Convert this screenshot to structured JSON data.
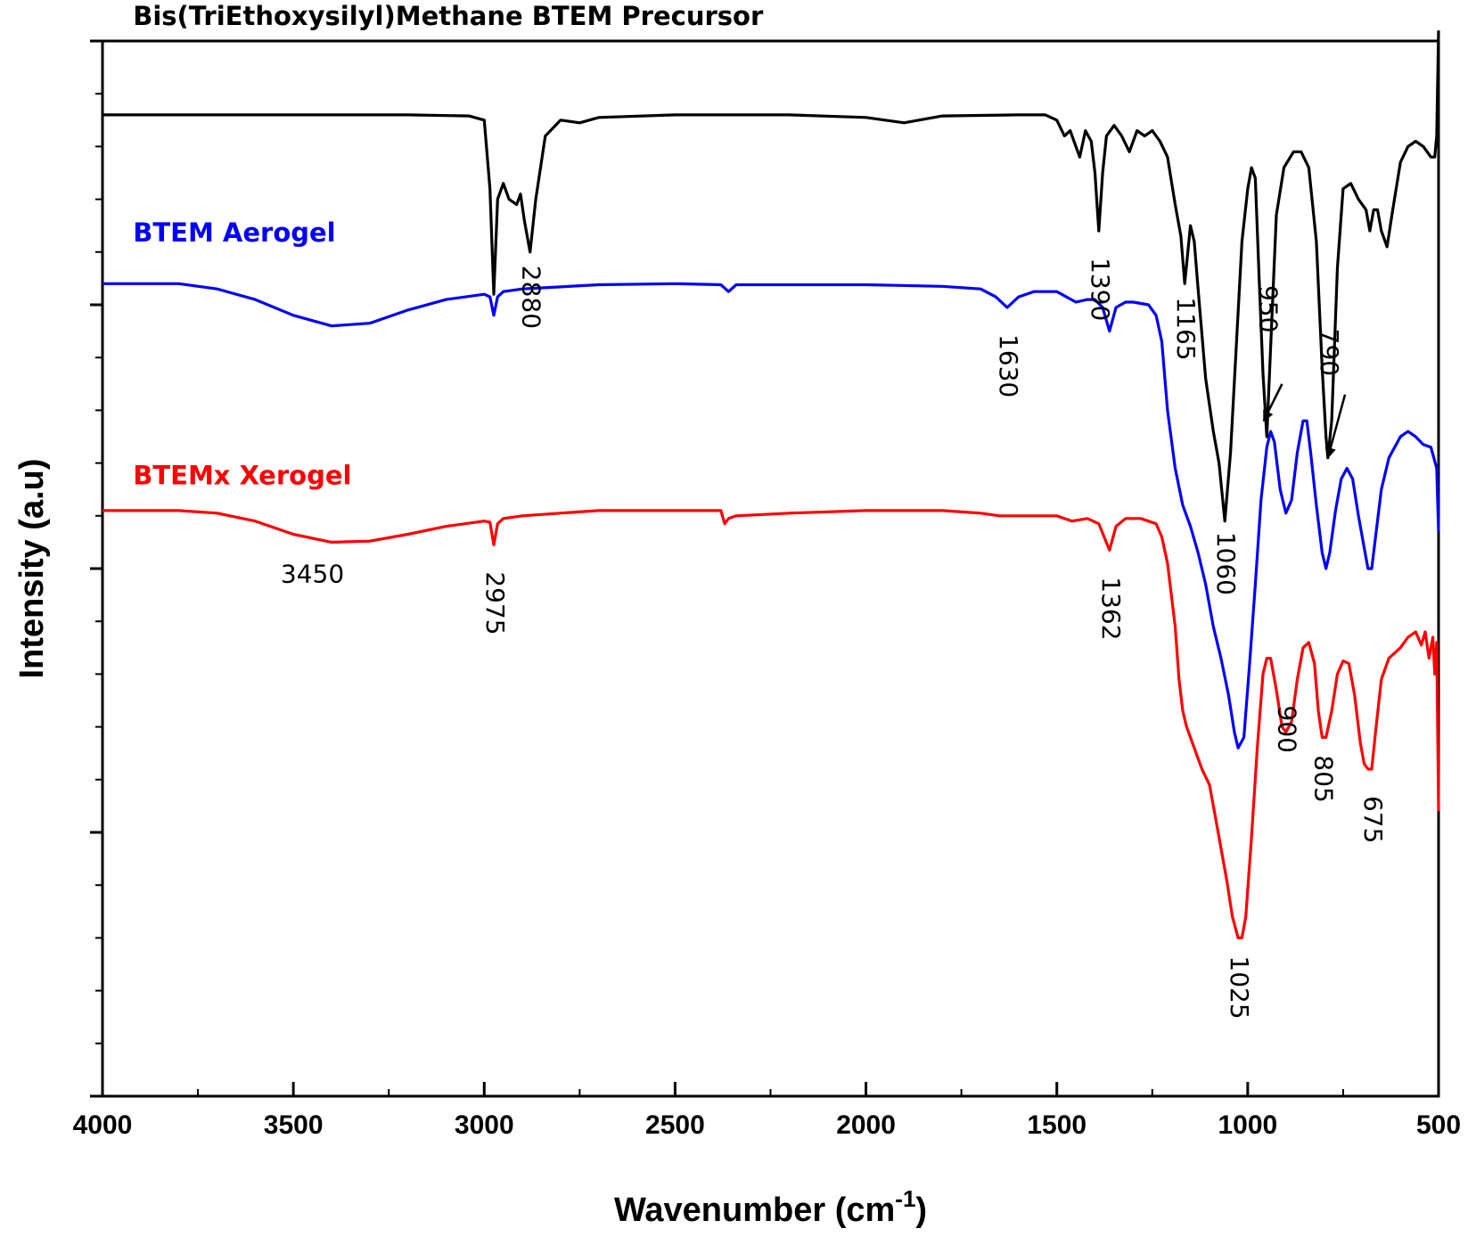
{
  "chart_data": {
    "type": "line",
    "title": "",
    "xlabel": "Wavenumber (cm",
    "xlabel_superscript": "-1",
    "xlabel_close": ")",
    "ylabel": "Intensity (a.u)",
    "xlim": [
      4000,
      500
    ],
    "ylim": [
      0,
      20
    ],
    "x_ticks": [
      4000,
      3500,
      3000,
      2500,
      2000,
      1500,
      1000,
      500
    ],
    "x_tick_labels": [
      "4000",
      "3500",
      "3000",
      "2500",
      "2000",
      "1500",
      "1000",
      "500"
    ],
    "y_tick_labels": "none",
    "grid": false,
    "series": [
      {
        "name": "Bis(TriEthoxysilyl)Methane BTEM Precursor",
        "color": "#000000",
        "points": [
          [
            4000,
            18.6
          ],
          [
            3600,
            18.6
          ],
          [
            3200,
            18.6
          ],
          [
            3040,
            18.58
          ],
          [
            3000,
            18.5
          ],
          [
            2985,
            17.2
          ],
          [
            2975,
            15.2
          ],
          [
            2965,
            17.0
          ],
          [
            2950,
            17.3
          ],
          [
            2935,
            17.0
          ],
          [
            2915,
            16.9
          ],
          [
            2905,
            17.1
          ],
          [
            2895,
            16.6
          ],
          [
            2880,
            16.0
          ],
          [
            2865,
            17.0
          ],
          [
            2840,
            18.2
          ],
          [
            2800,
            18.5
          ],
          [
            2750,
            18.45
          ],
          [
            2700,
            18.55
          ],
          [
            2500,
            18.6
          ],
          [
            2200,
            18.6
          ],
          [
            2000,
            18.55
          ],
          [
            1900,
            18.45
          ],
          [
            1800,
            18.58
          ],
          [
            1600,
            18.6
          ],
          [
            1530,
            18.6
          ],
          [
            1500,
            18.5
          ],
          [
            1480,
            18.2
          ],
          [
            1465,
            18.3
          ],
          [
            1450,
            18.0
          ],
          [
            1440,
            17.8
          ],
          [
            1425,
            18.3
          ],
          [
            1410,
            18.1
          ],
          [
            1400,
            17.5
          ],
          [
            1390,
            16.4
          ],
          [
            1380,
            17.5
          ],
          [
            1370,
            18.2
          ],
          [
            1350,
            18.4
          ],
          [
            1330,
            18.2
          ],
          [
            1310,
            17.9
          ],
          [
            1290,
            18.3
          ],
          [
            1270,
            18.2
          ],
          [
            1250,
            18.3
          ],
          [
            1230,
            18.1
          ],
          [
            1210,
            17.8
          ],
          [
            1190,
            16.9
          ],
          [
            1175,
            16.3
          ],
          [
            1165,
            15.4
          ],
          [
            1150,
            16.5
          ],
          [
            1140,
            16.2
          ],
          [
            1130,
            15.3
          ],
          [
            1110,
            13.6
          ],
          [
            1090,
            12.6
          ],
          [
            1075,
            12.0
          ],
          [
            1060,
            10.9
          ],
          [
            1045,
            12.2
          ],
          [
            1030,
            14.2
          ],
          [
            1015,
            16.2
          ],
          [
            1000,
            17.2
          ],
          [
            990,
            17.6
          ],
          [
            980,
            17.4
          ],
          [
            970,
            15.5
          ],
          [
            960,
            13.7
          ],
          [
            950,
            12.5
          ],
          [
            940,
            14.2
          ],
          [
            925,
            16.7
          ],
          [
            905,
            17.6
          ],
          [
            880,
            17.9
          ],
          [
            860,
            17.9
          ],
          [
            840,
            17.6
          ],
          [
            820,
            16.2
          ],
          [
            805,
            13.8
          ],
          [
            795,
            12.5
          ],
          [
            790,
            12.1
          ],
          [
            780,
            12.8
          ],
          [
            765,
            15.7
          ],
          [
            750,
            17.2
          ],
          [
            730,
            17.3
          ],
          [
            710,
            17.0
          ],
          [
            690,
            16.8
          ],
          [
            680,
            16.4
          ],
          [
            670,
            16.8
          ],
          [
            660,
            16.8
          ],
          [
            650,
            16.4
          ],
          [
            635,
            16.1
          ],
          [
            620,
            16.8
          ],
          [
            600,
            17.7
          ],
          [
            580,
            18.0
          ],
          [
            560,
            18.1
          ],
          [
            540,
            18.0
          ],
          [
            520,
            17.8
          ],
          [
            510,
            17.8
          ],
          [
            505,
            18.2
          ],
          [
            500,
            20.2
          ]
        ]
      },
      {
        "name": "BTEM Aerogel",
        "color": "#0000ff",
        "points": [
          [
            4000,
            15.4
          ],
          [
            3800,
            15.4
          ],
          [
            3700,
            15.3
          ],
          [
            3600,
            15.1
          ],
          [
            3500,
            14.8
          ],
          [
            3400,
            14.6
          ],
          [
            3300,
            14.65
          ],
          [
            3200,
            14.9
          ],
          [
            3100,
            15.1
          ],
          [
            3000,
            15.2
          ],
          [
            2985,
            15.15
          ],
          [
            2975,
            14.8
          ],
          [
            2965,
            15.15
          ],
          [
            2950,
            15.25
          ],
          [
            2900,
            15.3
          ],
          [
            2700,
            15.38
          ],
          [
            2500,
            15.4
          ],
          [
            2380,
            15.38
          ],
          [
            2360,
            15.25
          ],
          [
            2340,
            15.38
          ],
          [
            2200,
            15.38
          ],
          [
            2000,
            15.38
          ],
          [
            1800,
            15.35
          ],
          [
            1700,
            15.3
          ],
          [
            1660,
            15.15
          ],
          [
            1630,
            14.95
          ],
          [
            1600,
            15.15
          ],
          [
            1560,
            15.25
          ],
          [
            1500,
            15.25
          ],
          [
            1450,
            15.05
          ],
          [
            1420,
            15.1
          ],
          [
            1400,
            15.1
          ],
          [
            1380,
            14.95
          ],
          [
            1362,
            14.5
          ],
          [
            1345,
            14.95
          ],
          [
            1320,
            15.05
          ],
          [
            1300,
            15.05
          ],
          [
            1260,
            15.0
          ],
          [
            1240,
            14.8
          ],
          [
            1225,
            14.3
          ],
          [
            1210,
            13.0
          ],
          [
            1190,
            11.9
          ],
          [
            1170,
            11.2
          ],
          [
            1150,
            10.8
          ],
          [
            1130,
            10.3
          ],
          [
            1110,
            9.7
          ],
          [
            1090,
            8.9
          ],
          [
            1070,
            8.3
          ],
          [
            1050,
            7.6
          ],
          [
            1035,
            6.9
          ],
          [
            1025,
            6.6
          ],
          [
            1010,
            6.8
          ],
          [
            995,
            8.2
          ],
          [
            980,
            9.7
          ],
          [
            965,
            11.3
          ],
          [
            950,
            12.3
          ],
          [
            940,
            12.6
          ],
          [
            930,
            12.4
          ],
          [
            915,
            11.5
          ],
          [
            900,
            11.05
          ],
          [
            885,
            11.3
          ],
          [
            870,
            12.2
          ],
          [
            855,
            12.8
          ],
          [
            845,
            12.8
          ],
          [
            835,
            12.2
          ],
          [
            820,
            11.2
          ],
          [
            805,
            10.3
          ],
          [
            795,
            10.0
          ],
          [
            785,
            10.3
          ],
          [
            770,
            11.1
          ],
          [
            755,
            11.7
          ],
          [
            740,
            11.9
          ],
          [
            725,
            11.7
          ],
          [
            710,
            11.0
          ],
          [
            695,
            10.4
          ],
          [
            685,
            10.0
          ],
          [
            675,
            10.0
          ],
          [
            665,
            10.6
          ],
          [
            650,
            11.5
          ],
          [
            630,
            12.1
          ],
          [
            600,
            12.5
          ],
          [
            580,
            12.6
          ],
          [
            560,
            12.5
          ],
          [
            540,
            12.35
          ],
          [
            520,
            12.3
          ],
          [
            505,
            11.9
          ],
          [
            500,
            10.7
          ]
        ]
      },
      {
        "name": "BTEMx Xerogel",
        "color": "#ff0000",
        "points": [
          [
            4000,
            11.1
          ],
          [
            3800,
            11.1
          ],
          [
            3700,
            11.05
          ],
          [
            3600,
            10.9
          ],
          [
            3500,
            10.65
          ],
          [
            3400,
            10.5
          ],
          [
            3300,
            10.52
          ],
          [
            3200,
            10.65
          ],
          [
            3100,
            10.8
          ],
          [
            3000,
            10.9
          ],
          [
            2985,
            10.88
          ],
          [
            2975,
            10.45
          ],
          [
            2965,
            10.85
          ],
          [
            2950,
            10.95
          ],
          [
            2900,
            11.0
          ],
          [
            2800,
            11.05
          ],
          [
            2700,
            11.1
          ],
          [
            2500,
            11.1
          ],
          [
            2380,
            11.1
          ],
          [
            2370,
            10.85
          ],
          [
            2360,
            10.95
          ],
          [
            2340,
            11.0
          ],
          [
            2200,
            11.05
          ],
          [
            2000,
            11.1
          ],
          [
            1800,
            11.1
          ],
          [
            1700,
            11.05
          ],
          [
            1650,
            11.0
          ],
          [
            1550,
            11.0
          ],
          [
            1500,
            11.0
          ],
          [
            1460,
            10.9
          ],
          [
            1420,
            10.95
          ],
          [
            1390,
            10.85
          ],
          [
            1362,
            10.35
          ],
          [
            1345,
            10.8
          ],
          [
            1320,
            10.95
          ],
          [
            1280,
            10.95
          ],
          [
            1240,
            10.85
          ],
          [
            1225,
            10.6
          ],
          [
            1210,
            10.1
          ],
          [
            1200,
            9.5
          ],
          [
            1190,
            8.9
          ],
          [
            1180,
            7.9
          ],
          [
            1170,
            7.3
          ],
          [
            1160,
            7.0
          ],
          [
            1140,
            6.6
          ],
          [
            1120,
            6.2
          ],
          [
            1100,
            5.9
          ],
          [
            1085,
            5.3
          ],
          [
            1070,
            4.7
          ],
          [
            1055,
            4.1
          ],
          [
            1040,
            3.4
          ],
          [
            1025,
            3.0
          ],
          [
            1015,
            3.0
          ],
          [
            1005,
            3.4
          ],
          [
            990,
            4.9
          ],
          [
            975,
            6.6
          ],
          [
            960,
            8.0
          ],
          [
            950,
            8.3
          ],
          [
            940,
            8.3
          ],
          [
            925,
            7.7
          ],
          [
            910,
            7.0
          ],
          [
            900,
            6.9
          ],
          [
            885,
            7.1
          ],
          [
            870,
            7.9
          ],
          [
            855,
            8.5
          ],
          [
            840,
            8.6
          ],
          [
            825,
            8.2
          ],
          [
            815,
            7.3
          ],
          [
            805,
            6.8
          ],
          [
            795,
            6.8
          ],
          [
            780,
            7.3
          ],
          [
            765,
            8.0
          ],
          [
            750,
            8.25
          ],
          [
            735,
            8.2
          ],
          [
            720,
            7.6
          ],
          [
            705,
            6.7
          ],
          [
            695,
            6.3
          ],
          [
            685,
            6.2
          ],
          [
            675,
            6.2
          ],
          [
            665,
            6.9
          ],
          [
            650,
            7.9
          ],
          [
            630,
            8.3
          ],
          [
            600,
            8.5
          ],
          [
            580,
            8.7
          ],
          [
            560,
            8.8
          ],
          [
            545,
            8.55
          ],
          [
            535,
            8.8
          ],
          [
            525,
            8.3
          ],
          [
            515,
            8.7
          ],
          [
            510,
            8.0
          ],
          [
            505,
            8.6
          ],
          [
            500,
            5.4
          ]
        ]
      }
    ],
    "series_labels": [
      {
        "text": "Bis(TriEthoxysilyl)Methane BTEM Precursor",
        "color": "#000000",
        "x": 3920,
        "y": 20.3
      },
      {
        "text": "BTEM Aerogel",
        "color": "#0000ff",
        "x": 3920,
        "y": 16.2
      },
      {
        "text": "BTEMx Xerogel",
        "color": "#ff0000",
        "x": 3920,
        "y": 11.6
      }
    ],
    "peak_annotations": [
      {
        "text": "2880",
        "x": 2880,
        "y": 16.0,
        "rotate": 90,
        "dy": 15
      },
      {
        "text": "1390",
        "x": 1390,
        "y": 16.4,
        "rotate": 90,
        "dy": 30
      },
      {
        "text": "1165",
        "x": 1165,
        "y": 15.4,
        "rotate": 90,
        "dy": 15
      },
      {
        "text": "950",
        "x": 950,
        "y": 12.5,
        "rotate": 90,
        "dy": -170
      },
      {
        "text": "790",
        "x": 790,
        "y": 12.1,
        "rotate": 90,
        "dy": -145
      },
      {
        "text": "1630",
        "x": 1630,
        "y": 14.95,
        "rotate": 90,
        "dy": 30
      },
      {
        "text": "1060",
        "x": 1060,
        "y": 10.9,
        "rotate": 90,
        "dy": 12
      },
      {
        "text": "3450",
        "x": 3450,
        "y": 10.5,
        "rotate": 0,
        "dy": 45
      },
      {
        "text": "2975",
        "x": 2975,
        "y": 10.45,
        "rotate": 90,
        "dy": 30
      },
      {
        "text": "1362",
        "x": 1362,
        "y": 10.35,
        "rotate": 90,
        "dy": 30
      },
      {
        "text": "900",
        "x": 900,
        "y": 6.9,
        "rotate": 90,
        "dy": -30
      },
      {
        "text": "805",
        "x": 805,
        "y": 6.8,
        "rotate": 90,
        "dy": 20
      },
      {
        "text": "675",
        "x": 675,
        "y": 6.2,
        "rotate": 90,
        "dy": 30
      },
      {
        "text": "1025",
        "x": 1025,
        "y": 3.0,
        "rotate": 90,
        "dy": 20
      }
    ],
    "arrows": [
      {
        "from": [
          910,
          13.5
        ],
        "to": [
          958,
          12.8
        ]
      },
      {
        "from": [
          745,
          13.3
        ],
        "to": [
          790,
          12.1
        ]
      }
    ]
  }
}
